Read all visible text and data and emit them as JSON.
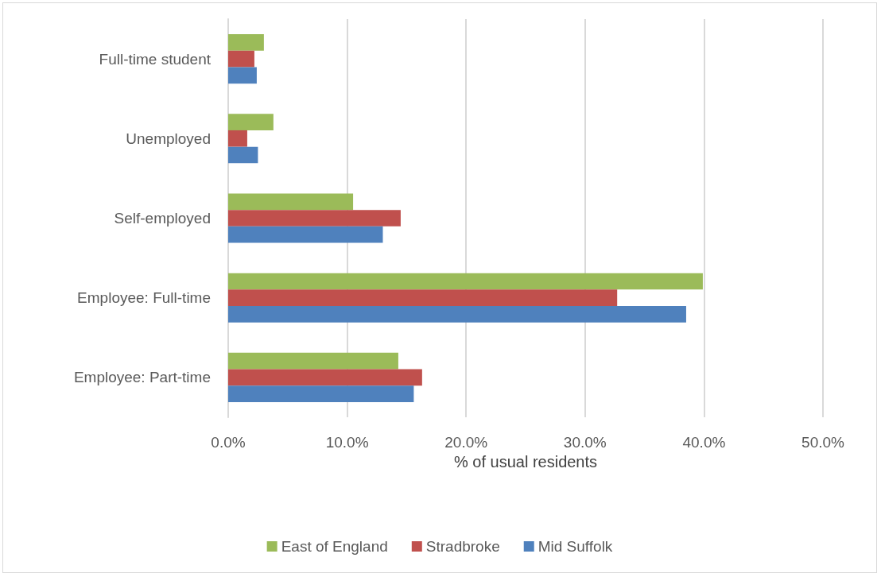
{
  "chart_data": {
    "type": "bar",
    "orientation": "horizontal",
    "xlabel": "% of usual residents",
    "categories": [
      "Full-time student",
      "Unemployed",
      "Self-employed",
      "Employee: Full-time",
      "Employee: Part-time"
    ],
    "series": [
      {
        "name": "East of England",
        "color": "#9bbb59",
        "values": [
          3.0,
          3.8,
          10.5,
          39.9,
          14.3
        ]
      },
      {
        "name": "Stradbroke",
        "color": "#c0504d",
        "values": [
          2.2,
          1.6,
          14.5,
          32.7,
          16.3
        ]
      },
      {
        "name": "Mid Suffolk",
        "color": "#4f81bd",
        "values": [
          2.4,
          2.5,
          13.0,
          38.5,
          15.6
        ]
      }
    ],
    "xlim": [
      0,
      50
    ],
    "xticks": [
      {
        "value": 0,
        "label": "0.0%"
      },
      {
        "value": 10,
        "label": "10.0%"
      },
      {
        "value": 20,
        "label": "20.0%"
      },
      {
        "value": 30,
        "label": "30.0%"
      },
      {
        "value": 40,
        "label": "40.0%"
      },
      {
        "value": 50,
        "label": "50.0%"
      }
    ],
    "grid": "x",
    "legend": "bottom"
  }
}
